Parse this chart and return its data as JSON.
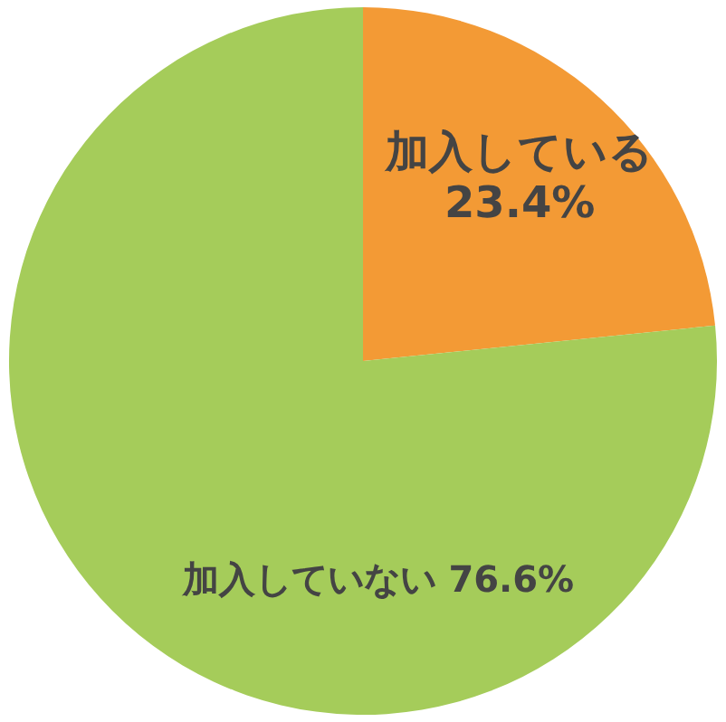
{
  "chart_data": {
    "type": "pie",
    "categories": [
      "加入している",
      "加入していない"
    ],
    "values": [
      23.4,
      76.6
    ],
    "colors": [
      "#f39a35",
      "#a5cc5a"
    ],
    "value_labels": [
      "23.4%",
      "76.6%"
    ],
    "legend": false
  }
}
